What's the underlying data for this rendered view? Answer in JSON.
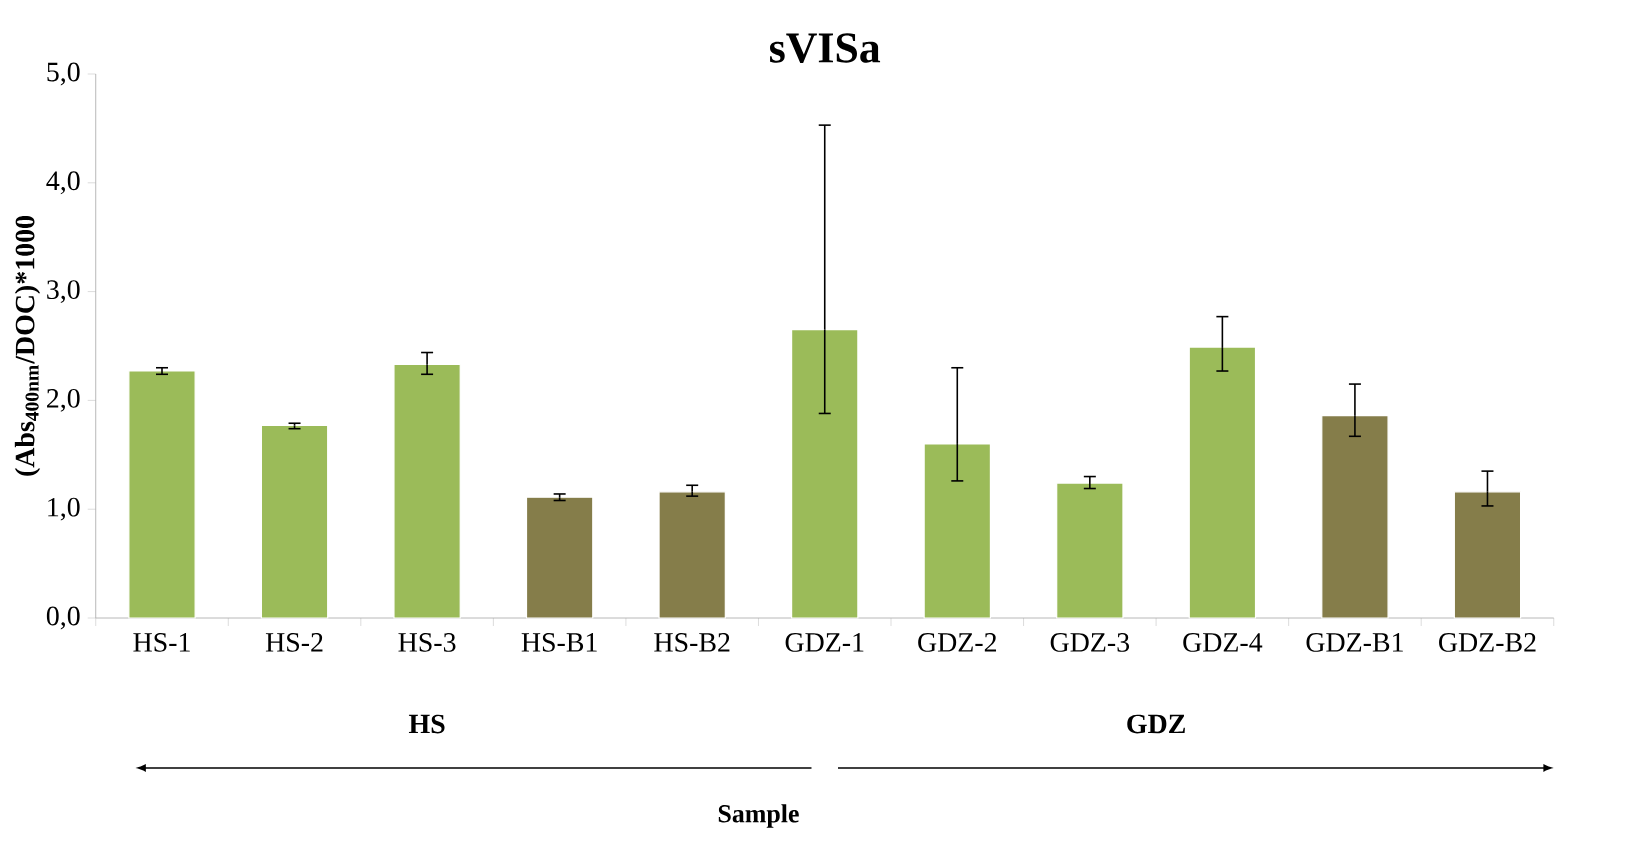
{
  "chart_data": {
    "type": "bar",
    "title": "sVISa",
    "ylabel": "(Abs$_{400nm}$/DOC)*1000",
    "categories": [
      "HS-1",
      "HS-2",
      "HS-3",
      "HS-B1",
      "HS-B2",
      "GDZ-1",
      "GDZ-2",
      "GDZ-3",
      "GDZ-4",
      "GDZ-B1",
      "GDZ-B2"
    ],
    "values": [
      2.27,
      1.77,
      2.33,
      1.11,
      1.16,
      2.65,
      1.6,
      1.24,
      2.49,
      1.86,
      1.16
    ],
    "colors": [
      "#9bbb59",
      "#9bbb59",
      "#9bbb59",
      "#857d4a",
      "#857d4a",
      "#9bbb59",
      "#9bbb59",
      "#9bbb59",
      "#9bbb59",
      "#857d4a",
      "#857d4a"
    ],
    "errors": [
      [
        2.24,
        2.3
      ],
      [
        1.74,
        1.79
      ],
      [
        2.24,
        2.44
      ],
      [
        1.08,
        1.14
      ],
      [
        1.12,
        1.22
      ],
      [
        1.88,
        4.53
      ],
      [
        1.26,
        2.3
      ],
      [
        1.19,
        1.3
      ],
      [
        2.27,
        2.77
      ],
      [
        1.67,
        2.15
      ],
      [
        1.03,
        1.35
      ]
    ],
    "ylim": [
      0,
      5
    ],
    "yticks": [
      {
        "value": 0,
        "label": "0,0"
      },
      {
        "value": 1,
        "label": "1,0"
      },
      {
        "value": 2,
        "label": "2,0"
      },
      {
        "value": 3,
        "label": "3,0"
      },
      {
        "value": 4,
        "label": "4,0"
      },
      {
        "value": 5,
        "label": "5,0"
      }
    ],
    "annotations": [
      "HS",
      "GDZ",
      "Sample"
    ],
    "grid": false
  }
}
